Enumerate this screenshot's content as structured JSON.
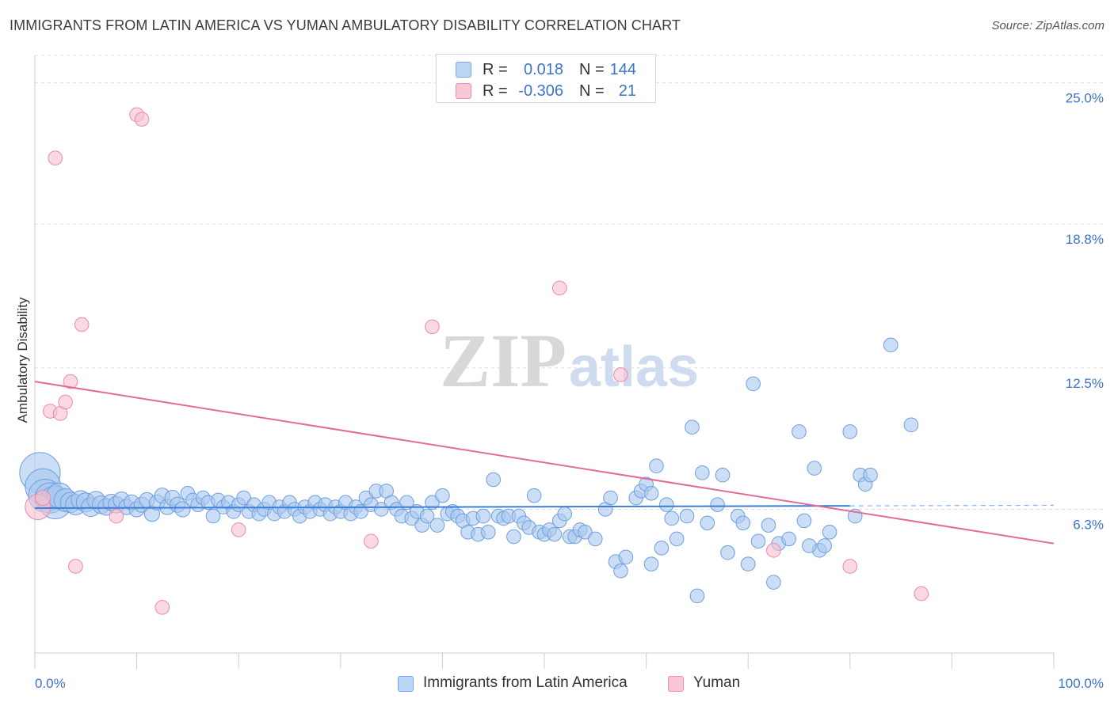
{
  "title": "IMMIGRANTS FROM LATIN AMERICA VS YUMAN AMBULATORY DISABILITY CORRELATION CHART",
  "source": "Source: ZipAtlas.com",
  "watermark": {
    "zip": "ZIP",
    "atlas": "atlas"
  },
  "legend": {
    "r_label": "R =",
    "n_label": "N =",
    "rows": [
      {
        "r": "0.018",
        "n": "144",
        "fill": "#bcd4f5",
        "stroke": "#7aa7e3"
      },
      {
        "r": "-0.306",
        "n": "21",
        "fill": "#f9c6d6",
        "stroke": "#ee8fb0"
      }
    ]
  },
  "colors": {
    "blue_fill": "#a9c8f0",
    "blue_stroke": "#6f9fdc",
    "blue_line": "#3d7fd6",
    "pink_fill": "#f7c0d0",
    "pink_stroke": "#e98aab",
    "pink_line": "#e46b97",
    "tick_label": "#3b74c9",
    "grid": "#dddddd"
  },
  "chart_data": {
    "type": "scatter",
    "title": "IMMIGRANTS FROM LATIN AMERICA VS YUMAN AMBULATORY DISABILITY CORRELATION CHART",
    "xlabel": "",
    "ylabel": "Ambulatory Disability",
    "xlim": [
      0,
      100
    ],
    "ylim": [
      0,
      26.2
    ],
    "x_tick_labels": [
      "0.0%",
      "100.0%"
    ],
    "y_ticks": [
      6.3,
      12.5,
      18.8,
      25.0
    ],
    "y_tick_labels": [
      "6.3%",
      "12.5%",
      "18.8%",
      "25.0%"
    ],
    "grid": "horizontal dashed",
    "legend_position": "top-center and bottom",
    "series": [
      {
        "name": "Immigrants from Latin America",
        "r": 0.018,
        "n": 144,
        "trend": {
          "x": [
            0,
            80
          ],
          "y": [
            6.35,
            6.45
          ],
          "dashed_extension_to_x": 100
        },
        "points": [
          [
            0.5,
            7.9,
            3.2
          ],
          [
            0.8,
            7.3,
            2.8
          ],
          [
            1.0,
            6.9,
            2.6
          ],
          [
            1.5,
            6.8,
            2.4
          ],
          [
            2.0,
            6.6,
            2.6
          ],
          [
            2.4,
            6.9,
            2.0
          ],
          [
            3.0,
            6.7,
            1.8
          ],
          [
            3.5,
            6.6,
            1.6
          ],
          [
            4.0,
            6.5,
            1.6
          ],
          [
            4.5,
            6.7,
            1.5
          ],
          [
            5.0,
            6.6,
            1.5
          ],
          [
            5.5,
            6.4,
            1.5
          ],
          [
            6.0,
            6.7,
            1.4
          ],
          [
            6.5,
            6.5,
            1.4
          ],
          [
            7.0,
            6.4,
            1.3
          ],
          [
            7.5,
            6.6,
            1.3
          ],
          [
            8.0,
            6.5,
            1.3
          ],
          [
            8.5,
            6.7,
            1.3
          ],
          [
            9.0,
            6.4,
            1.2
          ],
          [
            9.5,
            6.6,
            1.2
          ],
          [
            10.0,
            6.3,
            1.2
          ],
          [
            10.5,
            6.5,
            1.2
          ],
          [
            11.0,
            6.7,
            1.2
          ],
          [
            11.5,
            6.1,
            1.2
          ],
          [
            12.0,
            6.6,
            1.2
          ],
          [
            12.5,
            6.9,
            1.2
          ],
          [
            13.0,
            6.4,
            1.2
          ],
          [
            13.5,
            6.8,
            1.2
          ],
          [
            14.0,
            6.5,
            1.2
          ],
          [
            14.5,
            6.3,
            1.2
          ],
          [
            15.0,
            7.0,
            1.1
          ],
          [
            15.5,
            6.7,
            1.1
          ],
          [
            16.0,
            6.5,
            1.1
          ],
          [
            16.5,
            6.8,
            1.1
          ],
          [
            17.0,
            6.6,
            1.1
          ],
          [
            17.5,
            6.0,
            1.1
          ],
          [
            18.0,
            6.7,
            1.1
          ],
          [
            18.5,
            6.4,
            1.1
          ],
          [
            19.0,
            6.6,
            1.1
          ],
          [
            19.5,
            6.2,
            1.1
          ],
          [
            20.0,
            6.5,
            1.1
          ],
          [
            20.5,
            6.8,
            1.1
          ],
          [
            21.0,
            6.2,
            1.1
          ],
          [
            21.5,
            6.5,
            1.1
          ],
          [
            22.0,
            6.1,
            1.1
          ],
          [
            22.5,
            6.3,
            1.1
          ],
          [
            23.0,
            6.6,
            1.1
          ],
          [
            23.5,
            6.1,
            1.1
          ],
          [
            24.0,
            6.4,
            1.1
          ],
          [
            24.5,
            6.2,
            1.1
          ],
          [
            25.0,
            6.6,
            1.1
          ],
          [
            25.5,
            6.3,
            1.1
          ],
          [
            26.0,
            6.0,
            1.1
          ],
          [
            26.5,
            6.4,
            1.1
          ],
          [
            27.0,
            6.2,
            1.1
          ],
          [
            27.5,
            6.6,
            1.1
          ],
          [
            28.0,
            6.3,
            1.1
          ],
          [
            28.5,
            6.5,
            1.1
          ],
          [
            29.0,
            6.1,
            1.1
          ],
          [
            29.5,
            6.4,
            1.1
          ],
          [
            30.0,
            6.2,
            1.1
          ],
          [
            30.5,
            6.6,
            1.1
          ],
          [
            31.0,
            6.1,
            1.1
          ],
          [
            31.5,
            6.4,
            1.1
          ],
          [
            32.0,
            6.2,
            1.1
          ],
          [
            32.5,
            6.8,
            1.1
          ],
          [
            33.0,
            6.5,
            1.1
          ],
          [
            33.5,
            7.1,
            1.1
          ],
          [
            34.0,
            6.3,
            1.1
          ],
          [
            34.5,
            7.1,
            1.1
          ],
          [
            35.0,
            6.6,
            1.1
          ],
          [
            35.5,
            6.3,
            1.1
          ],
          [
            36.0,
            6.0,
            1.1
          ],
          [
            36.5,
            6.6,
            1.1
          ],
          [
            37.0,
            5.9,
            1.1
          ],
          [
            37.5,
            6.2,
            1.1
          ],
          [
            38.0,
            5.6,
            1.1
          ],
          [
            38.5,
            6.0,
            1.1
          ],
          [
            39.0,
            6.6,
            1.1
          ],
          [
            39.5,
            5.6,
            1.1
          ],
          [
            40.0,
            6.9,
            1.1
          ],
          [
            40.5,
            6.1,
            1.1
          ],
          [
            41.0,
            6.2,
            1.1
          ],
          [
            41.5,
            6.0,
            1.1
          ],
          [
            42.0,
            5.8,
            1.1
          ],
          [
            42.5,
            5.3,
            1.1
          ],
          [
            43.0,
            5.9,
            1.1
          ],
          [
            43.5,
            5.2,
            1.1
          ],
          [
            44.0,
            6.0,
            1.1
          ],
          [
            44.5,
            5.3,
            1.1
          ],
          [
            45.0,
            7.6,
            1.1
          ],
          [
            45.5,
            6.0,
            1.1
          ],
          [
            46.0,
            5.9,
            1.1
          ],
          [
            46.5,
            6.0,
            1.1
          ],
          [
            47.0,
            5.1,
            1.1
          ],
          [
            47.5,
            6.0,
            1.1
          ],
          [
            48.0,
            5.7,
            1.1
          ],
          [
            48.5,
            5.5,
            1.1
          ],
          [
            49.0,
            6.9,
            1.1
          ],
          [
            49.5,
            5.3,
            1.1
          ],
          [
            50.0,
            5.2,
            1.1
          ],
          [
            50.5,
            5.4,
            1.1
          ],
          [
            51.0,
            5.2,
            1.1
          ],
          [
            51.5,
            5.8,
            1.1
          ],
          [
            52.0,
            6.1,
            1.1
          ],
          [
            52.5,
            5.1,
            1.1
          ],
          [
            53.0,
            5.1,
            1.1
          ],
          [
            53.5,
            5.4,
            1.1
          ],
          [
            54.0,
            5.3,
            1.1
          ],
          [
            55.0,
            5.0,
            1.1
          ],
          [
            56.0,
            6.3,
            1.1
          ],
          [
            56.5,
            6.8,
            1.1
          ],
          [
            57.0,
            4.0,
            1.1
          ],
          [
            57.5,
            3.6,
            1.1
          ],
          [
            58.0,
            4.2,
            1.1
          ],
          [
            59.0,
            6.8,
            1.1
          ],
          [
            59.5,
            7.1,
            1.1
          ],
          [
            60.0,
            7.4,
            1.1
          ],
          [
            60.5,
            7.0,
            1.1
          ],
          [
            61.0,
            8.2,
            1.1
          ],
          [
            61.5,
            4.6,
            1.1
          ],
          [
            62.0,
            6.5,
            1.1
          ],
          [
            62.5,
            5.9,
            1.1
          ],
          [
            63.0,
            5.0,
            1.1
          ],
          [
            64.0,
            6.0,
            1.1
          ],
          [
            64.5,
            9.9,
            1.1
          ],
          [
            65.0,
            2.5,
            1.1
          ],
          [
            65.5,
            7.9,
            1.1
          ],
          [
            66.0,
            5.7,
            1.1
          ],
          [
            67.0,
            6.5,
            1.1
          ],
          [
            67.5,
            7.8,
            1.1
          ],
          [
            68.0,
            4.4,
            1.1
          ],
          [
            69.0,
            6.0,
            1.1
          ],
          [
            69.5,
            5.7,
            1.1
          ],
          [
            70.0,
            3.9,
            1.1
          ],
          [
            70.5,
            11.8,
            1.1
          ],
          [
            71.0,
            4.9,
            1.1
          ],
          [
            72.0,
            5.6,
            1.1
          ],
          [
            72.5,
            3.1,
            1.1
          ],
          [
            73.0,
            4.8,
            1.1
          ],
          [
            74.0,
            5.0,
            1.1
          ],
          [
            75.0,
            9.7,
            1.1
          ],
          [
            75.5,
            5.8,
            1.1
          ],
          [
            76.5,
            8.1,
            1.1
          ],
          [
            77.0,
            4.5,
            1.1
          ],
          [
            78.0,
            5.3,
            1.1
          ],
          [
            80.0,
            9.7,
            1.1
          ],
          [
            80.5,
            6.0,
            1.1
          ],
          [
            81.0,
            7.8,
            1.1
          ],
          [
            81.5,
            7.4,
            1.1
          ],
          [
            82.0,
            7.8,
            1.1
          ],
          [
            84.0,
            13.5,
            1.1
          ],
          [
            86.0,
            10.0,
            1.1
          ],
          [
            77.5,
            4.7,
            1.1
          ],
          [
            76.0,
            4.7,
            1.1
          ],
          [
            60.5,
            3.9,
            1.1
          ]
        ]
      },
      {
        "name": "Yuman",
        "r": -0.306,
        "n": 21,
        "trend": {
          "x": [
            0,
            100
          ],
          "y": [
            11.9,
            4.8
          ]
        },
        "points": [
          [
            0.3,
            6.4,
            2.0
          ],
          [
            0.8,
            6.8,
            1.2
          ],
          [
            1.5,
            10.6,
            1.1
          ],
          [
            2.0,
            21.7,
            1.1
          ],
          [
            2.5,
            10.5,
            1.1
          ],
          [
            3.0,
            11.0,
            1.1
          ],
          [
            3.5,
            11.9,
            1.1
          ],
          [
            4.6,
            14.4,
            1.1
          ],
          [
            4.0,
            3.8,
            1.1
          ],
          [
            8.0,
            6.0,
            1.1
          ],
          [
            10.0,
            23.6,
            1.1
          ],
          [
            10.5,
            23.4,
            1.1
          ],
          [
            12.5,
            2.0,
            1.1
          ],
          [
            20.0,
            5.4,
            1.1
          ],
          [
            33.0,
            4.9,
            1.1
          ],
          [
            39.0,
            14.3,
            1.1
          ],
          [
            51.5,
            16.0,
            1.1
          ],
          [
            57.5,
            12.2,
            1.1
          ],
          [
            72.5,
            4.5,
            1.1
          ],
          [
            80.0,
            3.8,
            1.1
          ],
          [
            87.0,
            2.6,
            1.1
          ]
        ]
      }
    ]
  },
  "bottom_legend": [
    {
      "label": "Immigrants from Latin America"
    },
    {
      "label": "Yuman"
    }
  ]
}
